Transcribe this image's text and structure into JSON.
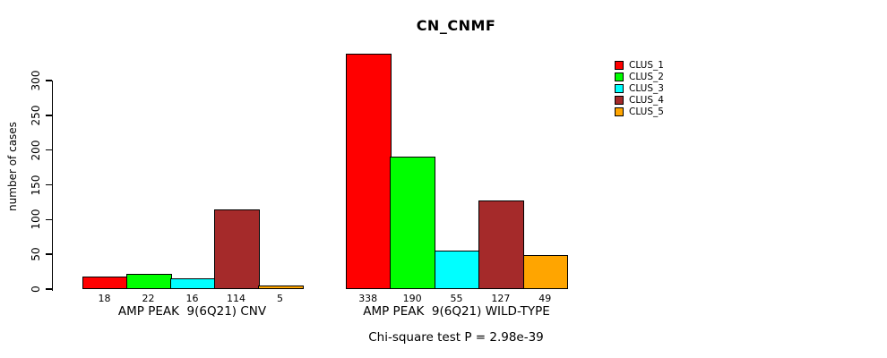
{
  "title": "CN_CNMF",
  "ylabel": "number of cases",
  "annotation": "Chi-square test P = 2.98e-39",
  "chart_data": {
    "type": "bar",
    "title": "CN_CNMF",
    "xlabel": "",
    "ylabel": "number of cases",
    "yticks": [
      0,
      50,
      100,
      150,
      200,
      250,
      300
    ],
    "ylim": [
      0,
      338
    ],
    "grid": false,
    "legend_position": "top-right",
    "legend": [
      {
        "label": "CLUS_1",
        "color": "#FF0000"
      },
      {
        "label": "CLUS_2",
        "color": "#00FF00"
      },
      {
        "label": "CLUS_3",
        "color": "#00FFFF"
      },
      {
        "label": "CLUS_4",
        "color": "#A52A2A"
      },
      {
        "label": "CLUS_5",
        "color": "#FFA500"
      }
    ],
    "series_colors": [
      "#FF0000",
      "#00FF00",
      "#00FFFF",
      "#A52A2A",
      "#FFA500"
    ],
    "groups": [
      {
        "label": "AMP PEAK  9(6Q21) CNV",
        "values": [
          18,
          22,
          16,
          114,
          5
        ],
        "value_labels": [
          "18",
          "22",
          "16",
          "114",
          "5"
        ]
      },
      {
        "label": "AMP PEAK  9(6Q21) WILD-TYPE",
        "values": [
          338,
          190,
          55,
          127,
          49
        ],
        "value_labels": [
          "338",
          "190",
          "55",
          "127",
          "49"
        ]
      }
    ],
    "annotation": "Chi-square test P = 2.98e-39"
  }
}
